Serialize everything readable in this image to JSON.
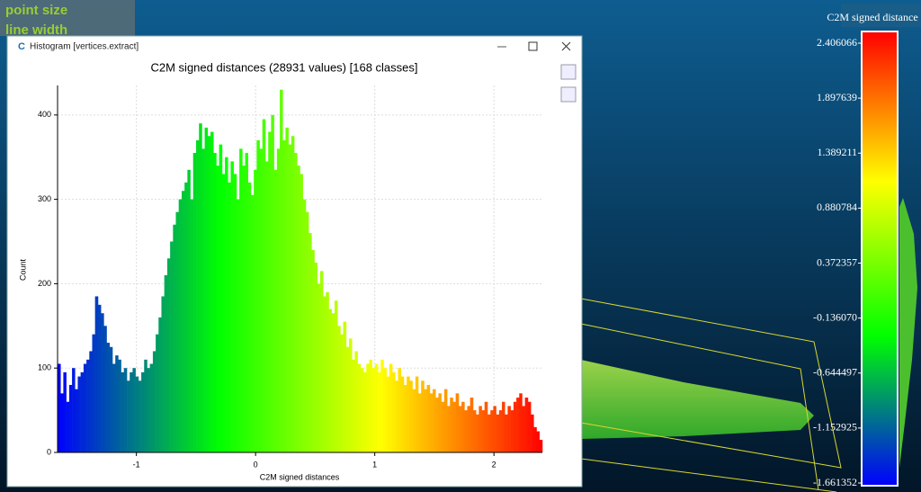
{
  "overlay": {
    "point_size": "point size",
    "line_width": "line width"
  },
  "window": {
    "title": "Histogram [vertices.extract]"
  },
  "chart_data": {
    "type": "histogram",
    "title": "C2M signed distances (28931 values)  [168 classes]",
    "x_label": "C2M signed distances",
    "y_label": "Count",
    "bins": [
      -1.661,
      -1.637,
      -1.613,
      -1.589,
      -1.564,
      -1.54,
      -1.516,
      -1.492,
      -1.468,
      -1.443,
      -1.419,
      -1.395,
      -1.371,
      -1.347,
      -1.322,
      -1.298,
      -1.274,
      -1.25,
      -1.226,
      -1.201,
      -1.177,
      -1.153,
      -1.129,
      -1.105,
      -1.08,
      -1.056,
      -1.032,
      -1.008,
      -0.983,
      -0.959,
      -0.935,
      -0.911,
      -0.887,
      -0.862,
      -0.838,
      -0.814,
      -0.79,
      -0.766,
      -0.741,
      -0.717,
      -0.693,
      -0.669,
      -0.645,
      -0.62,
      -0.596,
      -0.572,
      -0.548,
      -0.524,
      -0.499,
      -0.475,
      -0.451,
      -0.427,
      -0.403,
      -0.378,
      -0.354,
      -0.33,
      -0.306,
      -0.281,
      -0.257,
      -0.233,
      -0.209,
      -0.185,
      -0.16,
      -0.136,
      -0.112,
      -0.088,
      -0.064,
      -0.039,
      -0.015,
      0.009,
      0.033,
      0.057,
      0.082,
      0.106,
      0.13,
      0.154,
      0.179,
      0.203,
      0.227,
      0.251,
      0.275,
      0.3,
      0.324,
      0.348,
      0.372,
      0.396,
      0.421,
      0.445,
      0.469,
      0.493,
      0.517,
      0.542,
      0.566,
      0.59,
      0.614,
      0.638,
      0.663,
      0.687,
      0.711,
      0.735,
      0.76,
      0.784,
      0.808,
      0.832,
      0.856,
      0.881,
      0.905,
      0.929,
      0.953,
      0.977,
      1.002,
      1.026,
      1.05,
      1.074,
      1.098,
      1.123,
      1.147,
      1.171,
      1.195,
      1.219,
      1.244,
      1.268,
      1.292,
      1.316,
      1.341,
      1.365,
      1.389,
      1.413,
      1.437,
      1.462,
      1.486,
      1.51,
      1.534,
      1.558,
      1.583,
      1.607,
      1.631,
      1.655,
      1.679,
      1.704,
      1.728,
      1.752,
      1.776,
      1.8,
      1.825,
      1.849,
      1.873,
      1.897,
      1.921,
      1.946,
      1.97,
      1.994,
      2.018,
      2.043,
      2.067,
      2.091,
      2.115,
      2.139,
      2.164,
      2.188,
      2.212,
      2.236,
      2.26,
      2.285,
      2.309,
      2.333,
      2.357,
      2.381,
      2.406
    ],
    "values": [
      105,
      70,
      95,
      60,
      80,
      100,
      75,
      90,
      95,
      105,
      110,
      120,
      140,
      185,
      175,
      165,
      150,
      130,
      125,
      105,
      115,
      110,
      95,
      100,
      85,
      95,
      100,
      90,
      85,
      95,
      110,
      100,
      105,
      120,
      140,
      160,
      185,
      210,
      230,
      250,
      270,
      285,
      300,
      310,
      320,
      335,
      300,
      355,
      370,
      390,
      360,
      385,
      375,
      380,
      355,
      340,
      365,
      330,
      350,
      320,
      345,
      330,
      300,
      360,
      340,
      355,
      320,
      305,
      335,
      370,
      360,
      395,
      345,
      380,
      400,
      335,
      360,
      430,
      370,
      385,
      365,
      375,
      355,
      340,
      330,
      300,
      285,
      260,
      240,
      225,
      200,
      215,
      185,
      190,
      170,
      165,
      180,
      150,
      140,
      155,
      125,
      135,
      110,
      120,
      105,
      100,
      95,
      105,
      110,
      100,
      105,
      95,
      110,
      100,
      90,
      105,
      95,
      85,
      100,
      90,
      80,
      90,
      85,
      75,
      90,
      70,
      85,
      75,
      80,
      70,
      75,
      65,
      70,
      60,
      75,
      55,
      65,
      60,
      70,
      55,
      60,
      50,
      55,
      65,
      50,
      45,
      55,
      50,
      60,
      45,
      50,
      55,
      45,
      50,
      60,
      45,
      55,
      50,
      60,
      65,
      70,
      55,
      65,
      60,
      45,
      30,
      25,
      15
    ],
    "colorscale": [
      "#0000ff",
      "#00ff00",
      "#ffff00",
      "#ff0000"
    ],
    "xlim": [
      -1.661352,
      2.406066
    ],
    "ylim": [
      0,
      435
    ],
    "xticks": [
      -1,
      0,
      1,
      2
    ],
    "yticks": [
      0,
      100,
      200,
      300,
      400
    ],
    "grid": true
  },
  "scalar_bar": {
    "title": "C2M signed distance",
    "labels": [
      "2.406066",
      "1.897639",
      "1.389211",
      "0.880784",
      "0.372357",
      "-0.136070",
      "-0.644497",
      "-1.152925",
      "-1.661352"
    ]
  }
}
